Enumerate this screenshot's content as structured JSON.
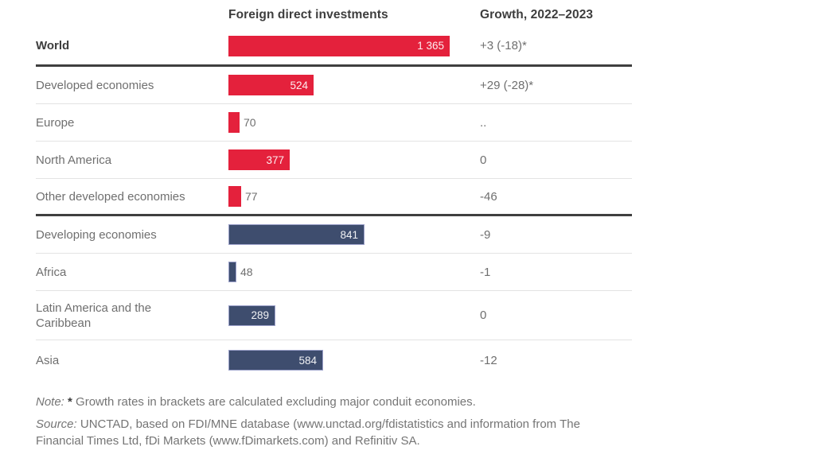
{
  "chart_data": {
    "type": "bar",
    "orientation": "horizontal",
    "title": "Foreign direct investments",
    "columns": {
      "investments": "Foreign direct investments",
      "growth": "Growth, 2022–2023"
    },
    "xlim": [
      0,
      1365
    ],
    "grid": false,
    "legend": "none",
    "colors": {
      "red": "#e4213c",
      "blue": "#3e4d6e",
      "blue_border": "#9ba0c9",
      "thick_rule": "#3f3f3f",
      "thin_rule": "#e3e3e3"
    },
    "rows": [
      {
        "label": "World",
        "value": 1365,
        "value_label": "1 365",
        "growth": "+3 (-18)*",
        "color": "red",
        "emphasis": true,
        "separator_after": "thick"
      },
      {
        "label": "Developed economies",
        "value": 524,
        "value_label": "524",
        "growth": "+29 (-28)*",
        "color": "red",
        "emphasis": false,
        "separator_after": "thin"
      },
      {
        "label": "Europe",
        "value": 70,
        "value_label": "70",
        "growth": "..",
        "color": "red",
        "emphasis": false,
        "separator_after": "thin"
      },
      {
        "label": "North America",
        "value": 377,
        "value_label": "377",
        "growth": "0",
        "color": "red",
        "emphasis": false,
        "separator_after": "thin"
      },
      {
        "label": "Other developed economies",
        "value": 77,
        "value_label": "77",
        "growth": "-46",
        "color": "red",
        "emphasis": false,
        "separator_after": "thick"
      },
      {
        "label": "Developing economies",
        "value": 841,
        "value_label": "841",
        "growth": "-9",
        "color": "blue",
        "emphasis": false,
        "separator_after": "thin"
      },
      {
        "label": "Africa",
        "value": 48,
        "value_label": "48",
        "growth": "-1",
        "color": "blue",
        "emphasis": false,
        "separator_after": "thin"
      },
      {
        "label": "Latin America and the Caribbean",
        "value": 289,
        "value_label": "289",
        "growth": "0",
        "color": "blue",
        "emphasis": false,
        "separator_after": "thin"
      },
      {
        "label": "Asia",
        "value": 584,
        "value_label": "584",
        "growth": "-12",
        "color": "blue",
        "emphasis": false,
        "separator_after": "none"
      }
    ]
  },
  "note": {
    "prefix": "Note:",
    "star": "*",
    "text": "Growth rates in brackets are calculated excluding major conduit economies."
  },
  "source": {
    "prefix": "Source:",
    "text": "UNCTAD, based on FDI/MNE database (www.unctad.org/fdistatistics and information from The Financial Times Ltd, fDi Markets (www.fDimarkets.com) and Refinitiv SA."
  }
}
